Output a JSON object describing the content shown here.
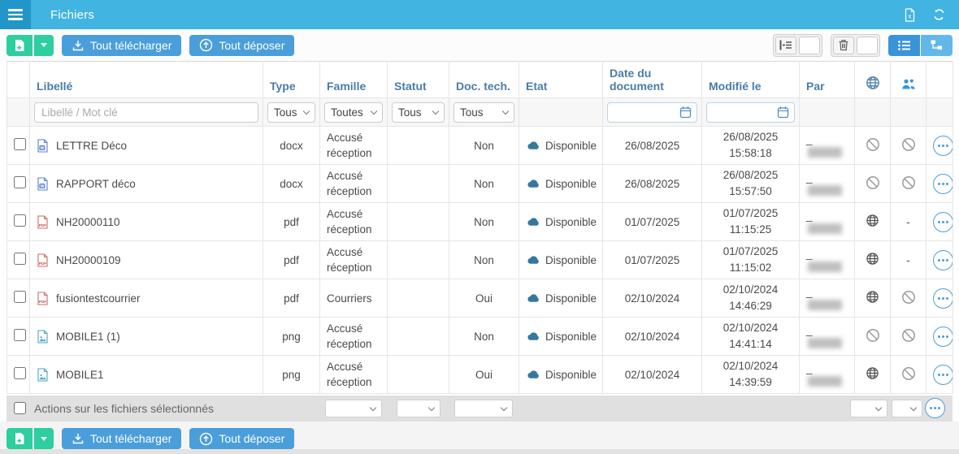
{
  "topbar": {
    "title": "Fichiers"
  },
  "toolbar": {
    "download_all_label": "Tout télécharger",
    "upload_all_label": "Tout déposer"
  },
  "table": {
    "headers": {
      "libelle": "Libellé",
      "type": "Type",
      "famille": "Famille",
      "statut": "Statut",
      "doc_tech": "Doc. tech.",
      "etat": "Etat",
      "date_document": "Date du document",
      "modifie_le": "Modifié le",
      "par": "Par"
    },
    "filters": {
      "libelle_placeholder": "Libellé / Mot clé",
      "type": "Tous",
      "famille": "Toutes",
      "statut": "Tous",
      "doc_tech": "Tous"
    },
    "rows": [
      {
        "label": "LETTRE Déco",
        "file_icon": "word-file-icon",
        "type": "docx",
        "famille": "Accusé réception",
        "statut": "",
        "doc_tech": "Non",
        "etat": "Disponible",
        "date_document": "26/08/2025",
        "modified_date": "26/08/2025",
        "modified_time": "15:58:18",
        "par_prefix": "_",
        "web": "blocked-icon",
        "group": "blocked-icon"
      },
      {
        "label": "RAPPORT déco",
        "file_icon": "word-file-icon",
        "type": "docx",
        "famille": "Accusé réception",
        "statut": "",
        "doc_tech": "Non",
        "etat": "Disponible",
        "date_document": "26/08/2025",
        "modified_date": "26/08/2025",
        "modified_time": "15:57:50",
        "par_prefix": "_",
        "web": "blocked-icon",
        "group": "blocked-icon"
      },
      {
        "label": "NH20000110",
        "file_icon": "pdf-file-icon",
        "type": "pdf",
        "famille": "Accusé réception",
        "statut": "",
        "doc_tech": "Non",
        "etat": "Disponible",
        "date_document": "01/07/2025",
        "modified_date": "01/07/2025",
        "modified_time": "11:15:25",
        "par_prefix": "_",
        "web": "globe-icon",
        "group": "dash"
      },
      {
        "label": "NH20000109",
        "file_icon": "pdf-file-icon",
        "type": "pdf",
        "famille": "Accusé réception",
        "statut": "",
        "doc_tech": "Non",
        "etat": "Disponible",
        "date_document": "01/07/2025",
        "modified_date": "01/07/2025",
        "modified_time": "11:15:02",
        "par_prefix": "_",
        "web": "globe-icon",
        "group": "dash"
      },
      {
        "label": "fusiontestcourrier",
        "file_icon": "pdf-file-icon",
        "type": "pdf",
        "famille": "Courriers",
        "statut": "",
        "doc_tech": "Oui",
        "etat": "Disponible",
        "date_document": "02/10/2024",
        "modified_date": "02/10/2024",
        "modified_time": "14:46:29",
        "par_prefix": "_",
        "web": "globe-icon",
        "group": "blocked-icon"
      },
      {
        "label": "MOBILE1 (1)",
        "file_icon": "image-file-icon",
        "type": "png",
        "famille": "Accusé réception",
        "statut": "",
        "doc_tech": "Non",
        "etat": "Disponible",
        "date_document": "02/10/2024",
        "modified_date": "02/10/2024",
        "modified_time": "14:41:14",
        "par_prefix": "_",
        "web": "blocked-icon",
        "group": "blocked-icon"
      },
      {
        "label": "MOBILE1",
        "file_icon": "image-file-icon",
        "type": "png",
        "famille": "Accusé réception",
        "statut": "",
        "doc_tech": "Oui",
        "etat": "Disponible",
        "date_document": "02/10/2024",
        "modified_date": "02/10/2024",
        "modified_time": "14:39:59",
        "par_prefix": "_",
        "web": "globe-icon",
        "group": "blocked-icon"
      }
    ]
  },
  "footer": {
    "actions_label": "Actions sur les fichiers sélectionnés"
  },
  "colors": {
    "topbar_blue": "#41b4e1",
    "menu_square_blue": "#2296c9",
    "green_button": "#2dce9f",
    "blue_button": "#4a9eda",
    "header_text_blue": "#4b7ca6",
    "available_link_blue": "#3786b5",
    "cloud_blue": "#35789e"
  }
}
